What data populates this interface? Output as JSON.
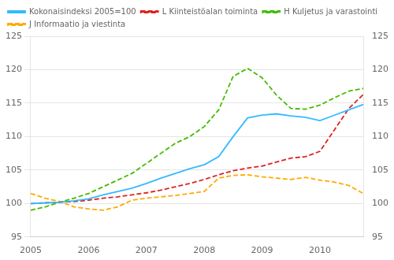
{
  "chart_data": {
    "type": "line",
    "categories": [
      "2005",
      null,
      null,
      null,
      "2006",
      null,
      null,
      null,
      "2007",
      null,
      null,
      null,
      "2008",
      null,
      null,
      null,
      "2009",
      null,
      null,
      null,
      "2010",
      null,
      null,
      null
    ],
    "series": [
      {
        "name": "Kokonaisindeksi 2005=100",
        "color": "#33bbff",
        "line_style": "solid",
        "values": [
          100.0,
          100.1,
          100.2,
          100.4,
          100.7,
          101.3,
          101.8,
          102.3,
          103.0,
          103.8,
          104.5,
          105.2,
          105.8,
          107.0,
          110.0,
          112.8,
          113.2,
          113.4,
          113.1,
          112.9,
          112.4,
          113.2,
          114.0,
          114.8
        ]
      },
      {
        "name": "L Kiinteistöalan toiminta",
        "color": "#dd2222",
        "line_style": "dashed",
        "values": [
          100.0,
          100.1,
          100.2,
          100.3,
          100.5,
          100.8,
          101.0,
          101.3,
          101.6,
          102.0,
          102.5,
          103.0,
          103.6,
          104.3,
          104.9,
          105.3,
          105.6,
          106.2,
          106.8,
          107.0,
          107.8,
          111.0,
          114.2,
          116.3
        ]
      },
      {
        "name": "H Kuljetus ja varastointi",
        "color": "#44bb00",
        "line_style": "dashed",
        "values": [
          99.0,
          99.5,
          100.2,
          100.8,
          101.5,
          102.5,
          103.5,
          104.5,
          106.0,
          107.5,
          109.0,
          110.0,
          111.5,
          114.0,
          119.0,
          120.2,
          118.8,
          116.2,
          114.2,
          114.1,
          114.7,
          115.8,
          116.8,
          117.2
        ]
      },
      {
        "name": "J Informaatio ja viestinta",
        "color": "#ffaa00",
        "line_style": "dashed",
        "values": [
          101.5,
          100.8,
          100.3,
          99.5,
          99.2,
          99.0,
          99.5,
          100.5,
          100.8,
          101.0,
          101.2,
          101.5,
          101.8,
          103.8,
          104.2,
          104.3,
          104.0,
          103.8,
          103.6,
          103.9,
          103.5,
          103.2,
          102.7,
          101.5
        ]
      }
    ],
    "ylim": [
      95,
      125
    ],
    "yticks": [
      95,
      100,
      105,
      110,
      115,
      120,
      125
    ],
    "y2lim": [
      95,
      125
    ],
    "y2ticks": [
      95,
      100,
      105,
      110,
      115,
      120,
      125
    ],
    "grid": "y",
    "legend": "upper left"
  }
}
